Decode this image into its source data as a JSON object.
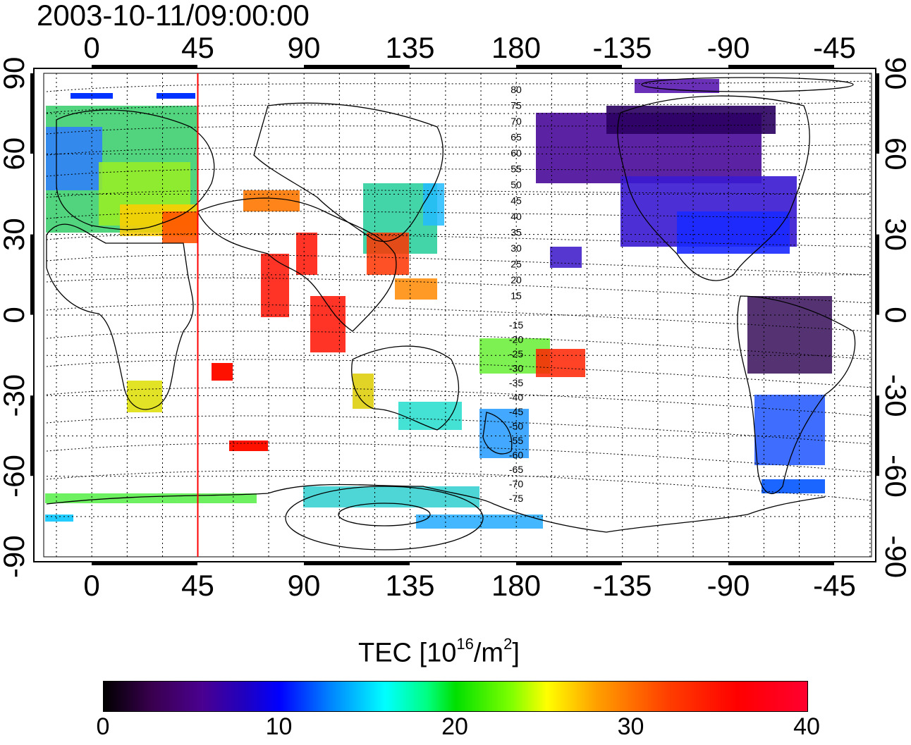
{
  "title": "2003-10-11/09:00:00",
  "map": {
    "top_lon_labels": [
      "0",
      "45",
      "90",
      "135",
      "180",
      "-135",
      "-90",
      "-45"
    ],
    "bottom_lon_labels": [
      "0",
      "45",
      "90",
      "135",
      "180",
      "-135",
      "-90",
      "-45"
    ],
    "left_lat_labels": [
      "90",
      "60",
      "30",
      "0",
      "-30",
      "-60",
      "-90"
    ],
    "right_lat_labels": [
      "90",
      "60",
      "30",
      "0",
      "-30",
      "-60",
      "-90"
    ],
    "marker_longitude": 45,
    "contour_labels_north": [
      "80",
      "75",
      "70",
      "65",
      "60",
      "55",
      "50",
      "45",
      "40",
      "35",
      "30",
      "25",
      "20",
      "15"
    ],
    "contour_labels_south": [
      "-15",
      "-20",
      "-25",
      "-30",
      "-35",
      "-40",
      "-45",
      "-50",
      "-55",
      "-60",
      "-65",
      "-70",
      "-75"
    ]
  },
  "colorbar": {
    "title_prefix": "TEC  [10",
    "title_exp": "16",
    "title_mid": "/m",
    "title_exp2": "2",
    "title_suffix": "]",
    "ticks": [
      "0",
      "10",
      "20",
      "30",
      "40"
    ],
    "range": [
      0,
      40
    ]
  },
  "colors": {
    "marker_line": "#ff0000",
    "grid": "#000000"
  }
}
